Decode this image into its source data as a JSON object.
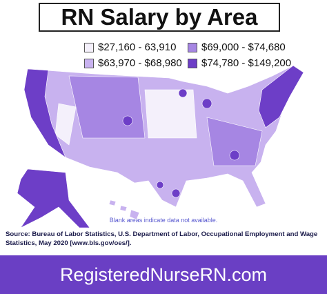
{
  "title": "RN Salary by Area",
  "legend": [
    {
      "label": "$27,160 - 63,910",
      "color": "#f4f0fb"
    },
    {
      "label": "$69,000 - $74,680",
      "color": "#a686e3"
    },
    {
      "label": "$63,970 - $68,980",
      "color": "#c8b2ef"
    },
    {
      "label": "$74,780 - $149,200",
      "color": "#6d3ec7"
    }
  ],
  "note": "Blank areas indicate data not available.",
  "source": "Source: Bureau of Labor Statistics, U.S. Department of Labor, Occupational Employment and Wage Statistics, May 2020 [www.bls.gov/oes/].",
  "footer": "RegisteredNurseRN.com"
}
